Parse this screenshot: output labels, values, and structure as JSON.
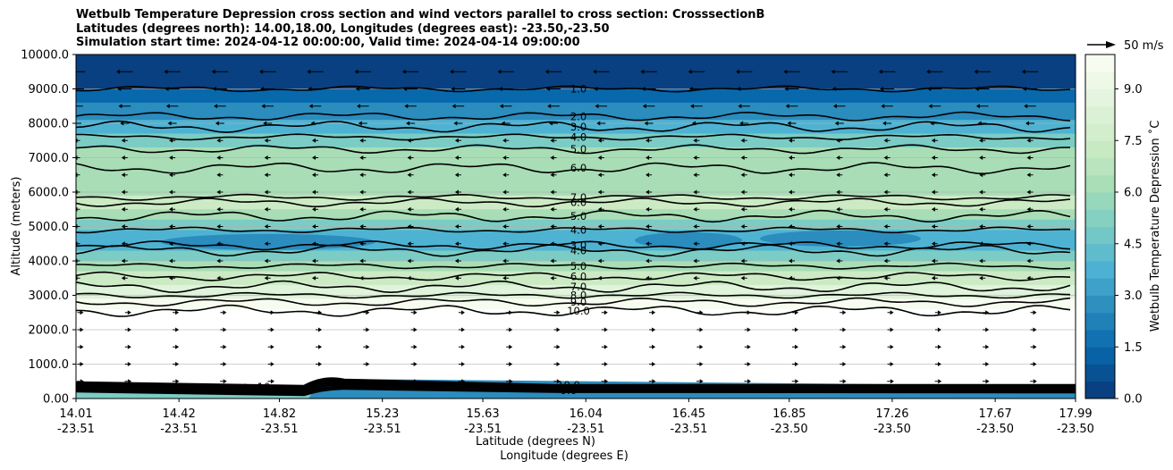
{
  "chart_data": {
    "type": "heatmap",
    "title_lines": [
      "Wetbulb Temperature Depression cross section and wind vectors parallel to cross section: CrosssectionB",
      "Latitudes (degrees north): 14.00,18.00, Longitudes (degrees east): -23.50,-23.50",
      "Simulation start time: 2024-04-12 00:00:00, Valid time: 2024-04-14 09:00:00"
    ],
    "ylabel": "Altitude (meters)",
    "xlabel_lat": "Latitude (degrees N)",
    "xlabel_lon": "Longitude (degrees E)",
    "ylim": [
      0,
      10000
    ],
    "xlim": [
      14.01,
      17.99
    ],
    "y_ticks": [
      "0.00",
      "1000.0",
      "2000.0",
      "3000.0",
      "4000.0",
      "5000.0",
      "6000.0",
      "7000.0",
      "8000.0",
      "9000.0",
      "10000.0"
    ],
    "x_ticks": [
      {
        "lat": "14.01",
        "lon": "-23.51"
      },
      {
        "lat": "14.42",
        "lon": "-23.51"
      },
      {
        "lat": "14.82",
        "lon": "-23.51"
      },
      {
        "lat": "15.23",
        "lon": "-23.51"
      },
      {
        "lat": "15.63",
        "lon": "-23.51"
      },
      {
        "lat": "16.04",
        "lon": "-23.51"
      },
      {
        "lat": "16.45",
        "lon": "-23.51"
      },
      {
        "lat": "16.85",
        "lon": "-23.50"
      },
      {
        "lat": "17.26",
        "lon": "-23.50"
      },
      {
        "lat": "17.67",
        "lon": "-23.50"
      },
      {
        "lat": "17.99",
        "lon": "-23.50"
      }
    ],
    "colorbar": {
      "label": "Wetbulb Temperature Depression ˚C",
      "range": [
        0,
        10
      ],
      "ticks": [
        "0.0",
        "1.5",
        "3.0",
        "4.5",
        "6.0",
        "7.5",
        "9.0"
      ],
      "colors": [
        "#084081",
        "#0868ac",
        "#2b8cbe",
        "#4eb3d3",
        "#7bccc4",
        "#a8ddb5",
        "#ccebc5",
        "#e0f3db",
        "#f7fcf0"
      ]
    },
    "contour_levels": [
      {
        "label": "1.0",
        "altitude_m": 9000
      },
      {
        "label": "2.0",
        "altitude_m": 8200
      },
      {
        "label": "3.0",
        "altitude_m": 7900
      },
      {
        "label": "4.0",
        "altitude_m": 7600
      },
      {
        "label": "5.0",
        "altitude_m": 7250
      },
      {
        "label": "6.0",
        "altitude_m": 6700
      },
      {
        "label": "7.0",
        "altitude_m": 5850
      },
      {
        "label": "6.0",
        "altitude_m": 5700
      },
      {
        "label": "5.0",
        "altitude_m": 5300
      },
      {
        "label": "4.0",
        "altitude_m": 4900
      },
      {
        "label": "3.0",
        "altitude_m": 4450
      },
      {
        "label": "4.0",
        "altitude_m": 4300
      },
      {
        "label": "5.0",
        "altitude_m": 3850
      },
      {
        "label": "6.0",
        "altitude_m": 3550
      },
      {
        "label": "7.0",
        "altitude_m": 3250
      },
      {
        "label": "8.0",
        "altitude_m": 3000
      },
      {
        "label": "9.0",
        "altitude_m": 2800
      },
      {
        "label": "10.0",
        "altitude_m": 2550
      }
    ],
    "surface_labels": [
      "7.0",
      "8.0",
      "9.0",
      "10.0",
      "10",
      "10.0",
      "10.0",
      "9.0"
    ],
    "wind_scale": {
      "label": "50 m/s",
      "speed": 50
    },
    "wind_rows": [
      {
        "altitude_m": 9500,
        "direction": "left",
        "speed": 12
      },
      {
        "altitude_m": 9000,
        "direction": "left",
        "speed": 10
      },
      {
        "altitude_m": 8500,
        "direction": "left",
        "speed": 8
      },
      {
        "altitude_m": 8000,
        "direction": "left",
        "speed": 5
      },
      {
        "altitude_m": 7500,
        "direction": "left",
        "speed": 2
      },
      {
        "altitude_m": 7000,
        "direction": "left",
        "speed": 1
      },
      {
        "altitude_m": 6500,
        "direction": "left",
        "speed": 1
      },
      {
        "altitude_m": 6000,
        "direction": "left",
        "speed": 1
      },
      {
        "altitude_m": 5500,
        "direction": "left",
        "speed": 1
      },
      {
        "altitude_m": 5000,
        "direction": "left",
        "speed": 1
      },
      {
        "altitude_m": 4500,
        "direction": "left",
        "speed": 1
      },
      {
        "altitude_m": 4000,
        "direction": "left",
        "speed": 1
      },
      {
        "altitude_m": 3500,
        "direction": "left",
        "speed": 1
      },
      {
        "altitude_m": 2500,
        "direction": "right",
        "speed": 1
      },
      {
        "altitude_m": 2000,
        "direction": "right",
        "speed": 1
      },
      {
        "altitude_m": 1500,
        "direction": "right",
        "speed": 1
      },
      {
        "altitude_m": 1000,
        "direction": "right",
        "speed": 2
      },
      {
        "altitude_m": 500,
        "direction": "right",
        "speed": 3
      }
    ]
  }
}
